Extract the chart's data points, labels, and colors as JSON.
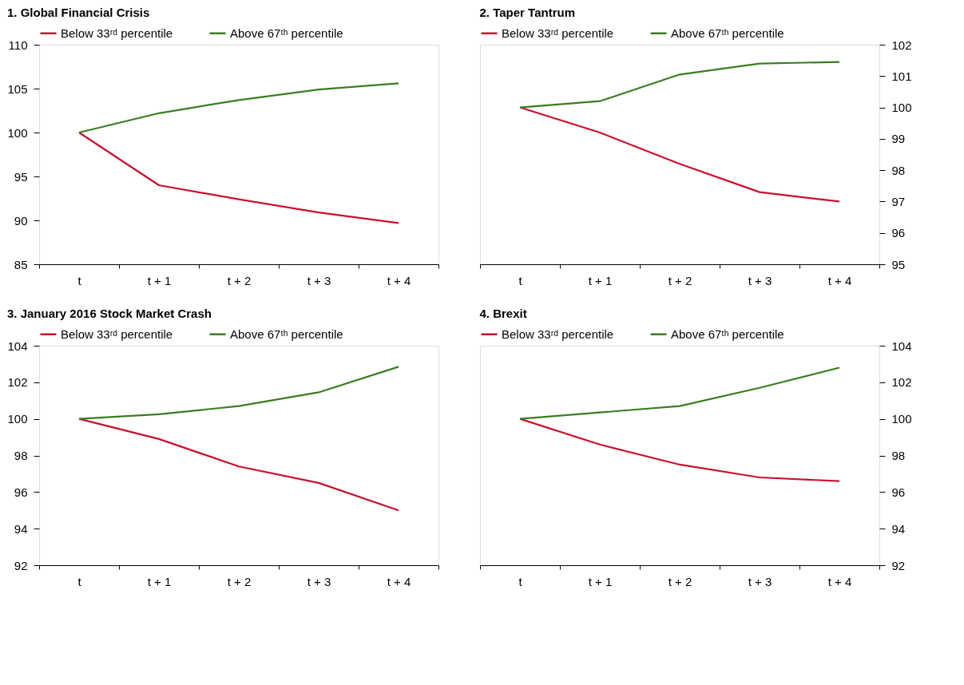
{
  "chart_data": [
    {
      "type": "line",
      "title": "1. Global Financial Crisis",
      "categories": [
        "t",
        "t + 1",
        "t + 2",
        "t + 3",
        "t + 4"
      ],
      "ylim": [
        85,
        110
      ],
      "yticks": [
        85,
        90,
        95,
        100,
        105,
        110
      ],
      "legend": "top",
      "grid": false,
      "series": [
        {
          "name": "Below 33ʳᵈ percentile",
          "color": "#c8102e",
          "values": [
            100,
            94.0,
            92.4,
            90.9,
            89.7
          ]
        },
        {
          "name": "Above 67ᵗʰ percentile",
          "color": "#3a7d22",
          "values": [
            100,
            102.2,
            103.7,
            104.9,
            105.6
          ]
        }
      ]
    },
    {
      "type": "line",
      "title": "2. Taper Tantrum",
      "categories": [
        "t",
        "t + 1",
        "t + 2",
        "t + 3",
        "t + 4"
      ],
      "y2lim": [
        95,
        102
      ],
      "y2ticks": [
        95,
        96,
        97,
        98,
        99,
        100,
        101,
        102
      ],
      "legend": "top",
      "grid": false,
      "series": [
        {
          "name": "Below 33ʳᵈ percentile",
          "color": "#c8102e",
          "axis": "y2",
          "values": [
            100,
            99.2,
            98.2,
            97.3,
            97.0
          ]
        },
        {
          "name": "Above 67ᵗʰ percentile",
          "color": "#3a7d22",
          "axis": "y2",
          "values": [
            100,
            100.2,
            101.05,
            101.4,
            101.45
          ]
        }
      ]
    },
    {
      "type": "line",
      "title": "3. January 2016 Stock Market Crash",
      "categories": [
        "t",
        "t + 1",
        "t + 2",
        "t + 3",
        "t + 4"
      ],
      "ylim": [
        92,
        104
      ],
      "yticks": [
        92,
        94,
        96,
        98,
        100,
        102,
        104
      ],
      "legend": "top",
      "grid": false,
      "series": [
        {
          "name": "Below 33ʳᵈ percentile",
          "color": "#c8102e",
          "values": [
            100,
            98.9,
            97.4,
            96.5,
            95.0
          ]
        },
        {
          "name": "Above 67ᵗʰ percentile",
          "color": "#3a7d22",
          "values": [
            100,
            100.25,
            100.7,
            101.45,
            102.85
          ]
        }
      ]
    },
    {
      "type": "line",
      "title": "4. Brexit",
      "categories": [
        "t",
        "t + 1",
        "t + 2",
        "t + 3",
        "t + 4"
      ],
      "y2lim": [
        92,
        104
      ],
      "y2ticks": [
        92,
        94,
        96,
        98,
        100,
        102,
        104
      ],
      "legend": "top",
      "grid": false,
      "series": [
        {
          "name": "Below 33ʳᵈ percentile",
          "color": "#c8102e",
          "axis": "y2",
          "values": [
            100,
            98.6,
            97.5,
            96.8,
            96.6
          ]
        },
        {
          "name": "Above 67ᵗʰ percentile",
          "color": "#3a7d22",
          "axis": "y2",
          "values": [
            100,
            100.35,
            100.7,
            101.7,
            102.8
          ]
        }
      ]
    }
  ]
}
